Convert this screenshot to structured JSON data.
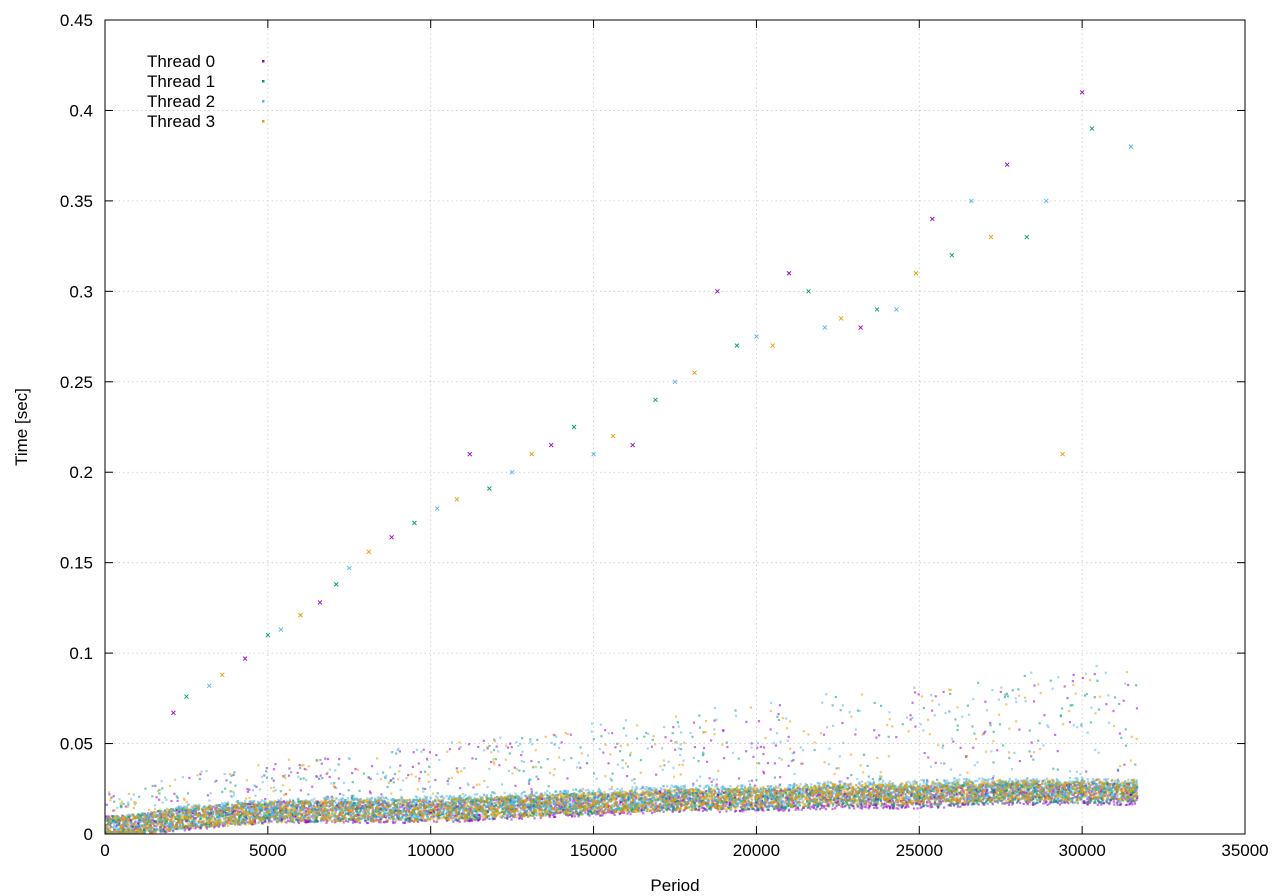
{
  "chart_data": {
    "type": "scatter",
    "title": "",
    "xlabel": "Period",
    "ylabel": "Time [sec]",
    "xlim": [
      0,
      35000
    ],
    "ylim": [
      0,
      0.45
    ],
    "xticks": [
      "0",
      "5000",
      "10000",
      "15000",
      "20000",
      "25000",
      "30000",
      "35000"
    ],
    "yticks": [
      "0",
      "0.05",
      "0.1",
      "0.15",
      "0.2",
      "0.25",
      "0.3",
      "0.35",
      "0.4",
      "0.45"
    ],
    "grid": true,
    "legend_position": "top-left",
    "series": [
      {
        "name": "Thread 0",
        "color": "#9400d3",
        "x": [
          500,
          2500,
          5000,
          7500,
          10000,
          12500,
          15000,
          17500,
          20000,
          22500,
          25000,
          27500,
          30000,
          31500
        ],
        "y": [
          0.004,
          0.008,
          0.012,
          0.012,
          0.012,
          0.014,
          0.016,
          0.018,
          0.018,
          0.02,
          0.02,
          0.022,
          0.022,
          0.022
        ]
      },
      {
        "name": "Thread 1",
        "color": "#009e73",
        "x": [
          500,
          2500,
          5000,
          7500,
          10000,
          12500,
          15000,
          17500,
          20000,
          22500,
          25000,
          27500,
          30000,
          31500
        ],
        "y": [
          0.004,
          0.009,
          0.012,
          0.013,
          0.013,
          0.015,
          0.017,
          0.019,
          0.019,
          0.021,
          0.021,
          0.023,
          0.023,
          0.023
        ]
      },
      {
        "name": "Thread 2",
        "color": "#56b4e9",
        "x": [
          500,
          2500,
          5000,
          7500,
          10000,
          12500,
          15000,
          17500,
          20000,
          22500,
          25000,
          27500,
          30000,
          31500
        ],
        "y": [
          0.004,
          0.01,
          0.013,
          0.014,
          0.015,
          0.017,
          0.019,
          0.021,
          0.021,
          0.023,
          0.024,
          0.025,
          0.025,
          0.025
        ]
      },
      {
        "name": "Thread 3",
        "color": "#e69f00",
        "x": [
          500,
          2500,
          5000,
          7500,
          10000,
          12500,
          15000,
          17500,
          20000,
          22500,
          25000,
          27500,
          30000,
          31500
        ],
        "y": [
          0.004,
          0.009,
          0.012,
          0.013,
          0.013,
          0.015,
          0.017,
          0.019,
          0.02,
          0.022,
          0.022,
          0.024,
          0.024,
          0.024
        ]
      }
    ],
    "outliers": {
      "x": [
        2100,
        2500,
        3200,
        3600,
        4300,
        5000,
        5400,
        6000,
        6600,
        7100,
        7500,
        8100,
        8800,
        9500,
        10200,
        10800,
        11200,
        11800,
        12500,
        13100,
        13700,
        14400,
        15000,
        15600,
        16200,
        16900,
        17500,
        18100,
        18800,
        19400,
        20000,
        20500,
        21000,
        21600,
        22100,
        22600,
        23200,
        23700,
        24300,
        24900,
        25400,
        26000,
        26600,
        27200,
        27700,
        28300,
        28900,
        29400,
        30000,
        30300,
        31500
      ],
      "y": [
        0.067,
        0.076,
        0.082,
        0.088,
        0.097,
        0.11,
        0.113,
        0.121,
        0.128,
        0.138,
        0.147,
        0.156,
        0.164,
        0.172,
        0.18,
        0.185,
        0.21,
        0.191,
        0.2,
        0.21,
        0.215,
        0.225,
        0.21,
        0.22,
        0.215,
        0.24,
        0.25,
        0.255,
        0.3,
        0.27,
        0.275,
        0.27,
        0.31,
        0.3,
        0.28,
        0.285,
        0.28,
        0.29,
        0.29,
        0.31,
        0.34,
        0.32,
        0.35,
        0.33,
        0.37,
        0.33,
        0.35,
        0.21,
        0.41,
        0.39,
        0.38
      ]
    }
  }
}
